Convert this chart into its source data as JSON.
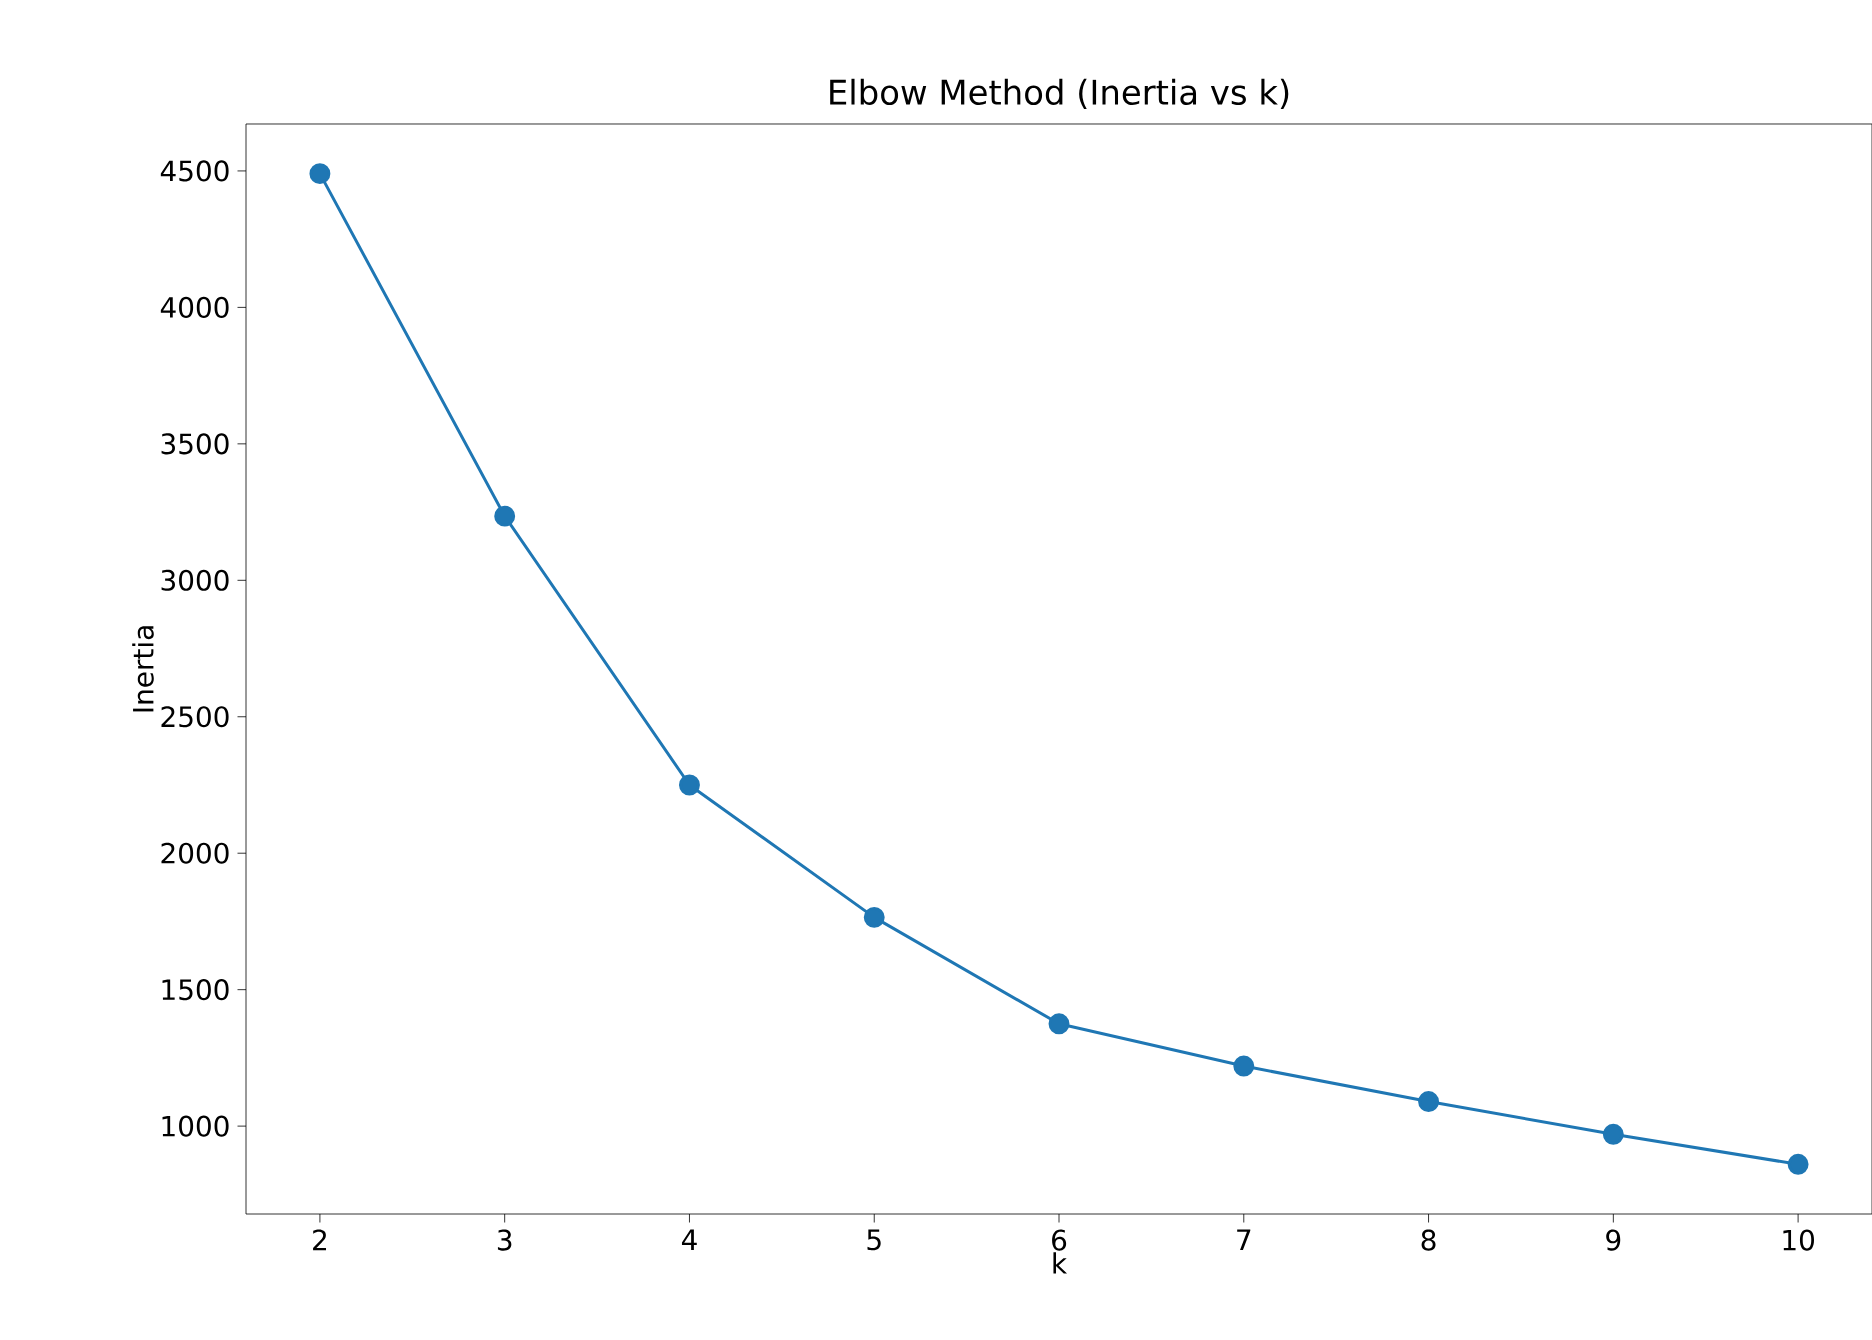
{
  "chart_data": {
    "type": "line",
    "title": "Elbow Method (Inertia vs k)",
    "xlabel": "k",
    "ylabel": "Inertia",
    "x": [
      2,
      3,
      4,
      5,
      6,
      7,
      8,
      9,
      10
    ],
    "series": [
      {
        "color": "#1f77b4",
        "values": [
          4490,
          3235,
          2250,
          1765,
          1375,
          1220,
          1090,
          970,
          860
        ]
      }
    ],
    "xlim": [
      1.6,
      10.4
    ],
    "ylim": [
      678,
      4672
    ],
    "xticks": [
      2,
      3,
      4,
      5,
      6,
      7,
      8,
      9,
      10
    ],
    "yticks": [
      1000,
      1500,
      2000,
      2500,
      3000,
      3500,
      4000,
      4500
    ],
    "marker": "circle",
    "line_style": "solid",
    "grid": false
  }
}
